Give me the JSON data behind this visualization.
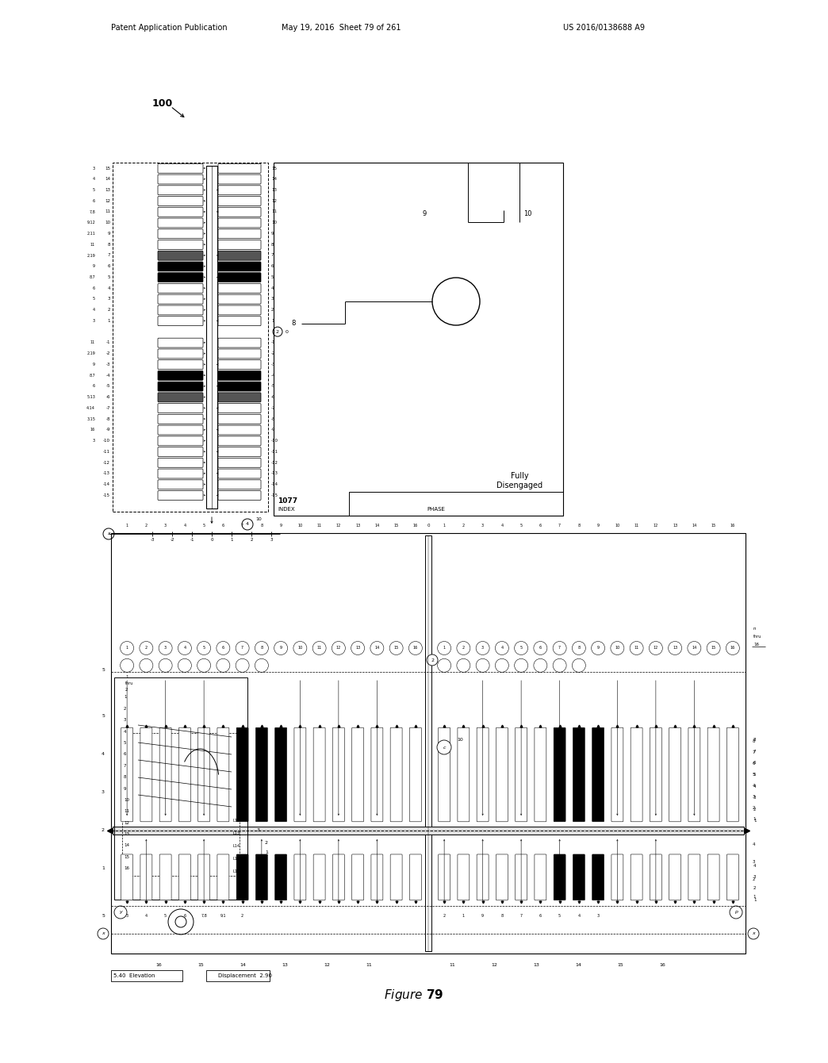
{
  "title": "Figure 79",
  "header_left": "Patent Application Publication",
  "header_mid": "May 19, 2016  Sheet 79 of 261",
  "header_right": "US 2016/0138688 A9",
  "label_100": "100",
  "label_1077": "1077",
  "label_index": "INDEX",
  "label_fully": "Fully",
  "label_disengaged": "Disengaged",
  "label_phase": "PHASE",
  "label_elevation": "5.40  Elevation",
  "label_displacement": "Displacement  2.90",
  "background_color": "#ffffff",
  "line_color": "#000000"
}
